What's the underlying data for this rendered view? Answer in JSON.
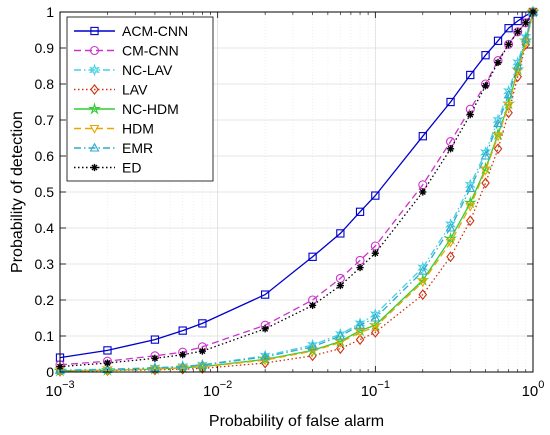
{
  "chart_data": {
    "type": "line",
    "xlabel": "Probability of false alarm",
    "ylabel": "Probability of detection",
    "xscale": "log",
    "xlim": [
      0.001,
      1
    ],
    "ylim": [
      0,
      1
    ],
    "grid": true,
    "legend_position": "top-left",
    "x_ticks": [
      {
        "value": 0.001,
        "base": "10",
        "exp": "−3"
      },
      {
        "value": 0.01,
        "base": "10",
        "exp": "−2"
      },
      {
        "value": 0.1,
        "base": "10",
        "exp": "−1"
      },
      {
        "value": 1,
        "base": "10",
        "exp": "0"
      }
    ],
    "y_ticks": [
      {
        "value": 0,
        "label": "0"
      },
      {
        "value": 0.1,
        "label": "0.1"
      },
      {
        "value": 0.2,
        "label": "0.2"
      },
      {
        "value": 0.3,
        "label": "0.3"
      },
      {
        "value": 0.4,
        "label": "0.4"
      },
      {
        "value": 0.5,
        "label": "0.5"
      },
      {
        "value": 0.6,
        "label": "0.6"
      },
      {
        "value": 0.7,
        "label": "0.7"
      },
      {
        "value": 0.8,
        "label": "0.8"
      },
      {
        "value": 0.9,
        "label": "0.9"
      },
      {
        "value": 1,
        "label": "1"
      }
    ],
    "x": [
      0.001,
      0.002,
      0.004,
      0.006,
      0.008,
      0.02,
      0.04,
      0.06,
      0.08,
      0.1,
      0.2,
      0.3,
      0.4,
      0.5,
      0.6,
      0.7,
      0.8,
      0.9,
      1
    ],
    "series": [
      {
        "name": "ACM-CNN",
        "color": "#0000cc",
        "dash": "solid",
        "marker": "square",
        "values": [
          0.04,
          0.06,
          0.09,
          0.115,
          0.135,
          0.215,
          0.32,
          0.385,
          0.445,
          0.49,
          0.655,
          0.75,
          0.825,
          0.88,
          0.92,
          0.955,
          0.975,
          0.99,
          1
        ]
      },
      {
        "name": "CM-CNN",
        "color": "#cc33cc",
        "dash": "dashed",
        "marker": "circle",
        "values": [
          0.02,
          0.03,
          0.045,
          0.055,
          0.07,
          0.13,
          0.2,
          0.26,
          0.31,
          0.35,
          0.52,
          0.64,
          0.73,
          0.8,
          0.865,
          0.91,
          0.945,
          0.97,
          1
        ]
      },
      {
        "name": "NC-LAV",
        "color": "#44d0e6",
        "dash": "dashdot",
        "marker": "hexagram",
        "values": [
          0.005,
          0.008,
          0.012,
          0.016,
          0.02,
          0.045,
          0.075,
          0.105,
          0.135,
          0.16,
          0.29,
          0.41,
          0.52,
          0.61,
          0.7,
          0.78,
          0.86,
          0.93,
          1
        ]
      },
      {
        "name": "LAV",
        "color": "#cc3311",
        "dash": "dotted",
        "marker": "diamond",
        "values": [
          0.002,
          0.004,
          0.006,
          0.008,
          0.01,
          0.025,
          0.045,
          0.065,
          0.09,
          0.11,
          0.215,
          0.32,
          0.42,
          0.525,
          0.62,
          0.72,
          0.82,
          0.91,
          1
        ]
      },
      {
        "name": "NC-HDM",
        "color": "#33cc33",
        "dash": "solid",
        "marker": "pentagram",
        "values": [
          0.003,
          0.005,
          0.008,
          0.012,
          0.015,
          0.035,
          0.06,
          0.085,
          0.115,
          0.13,
          0.255,
          0.37,
          0.47,
          0.565,
          0.66,
          0.745,
          0.84,
          0.92,
          1
        ]
      },
      {
        "name": "HDM",
        "color": "#e6a800",
        "dash": "dashed",
        "marker": "triangle-down",
        "values": [
          0.003,
          0.005,
          0.008,
          0.011,
          0.014,
          0.033,
          0.058,
          0.082,
          0.11,
          0.125,
          0.25,
          0.36,
          0.46,
          0.56,
          0.655,
          0.74,
          0.835,
          0.915,
          1
        ]
      },
      {
        "name": "EMR",
        "color": "#33aacc",
        "dash": "dashdot",
        "marker": "triangle-up",
        "values": [
          0.004,
          0.007,
          0.011,
          0.015,
          0.019,
          0.042,
          0.07,
          0.1,
          0.13,
          0.15,
          0.28,
          0.4,
          0.51,
          0.6,
          0.69,
          0.77,
          0.85,
          0.925,
          1
        ]
      },
      {
        "name": "ED",
        "color": "#000000",
        "dash": "dotted",
        "marker": "star",
        "values": [
          0.015,
          0.025,
          0.038,
          0.048,
          0.058,
          0.12,
          0.185,
          0.24,
          0.29,
          0.33,
          0.5,
          0.62,
          0.715,
          0.795,
          0.86,
          0.91,
          0.945,
          0.97,
          1
        ]
      }
    ]
  }
}
